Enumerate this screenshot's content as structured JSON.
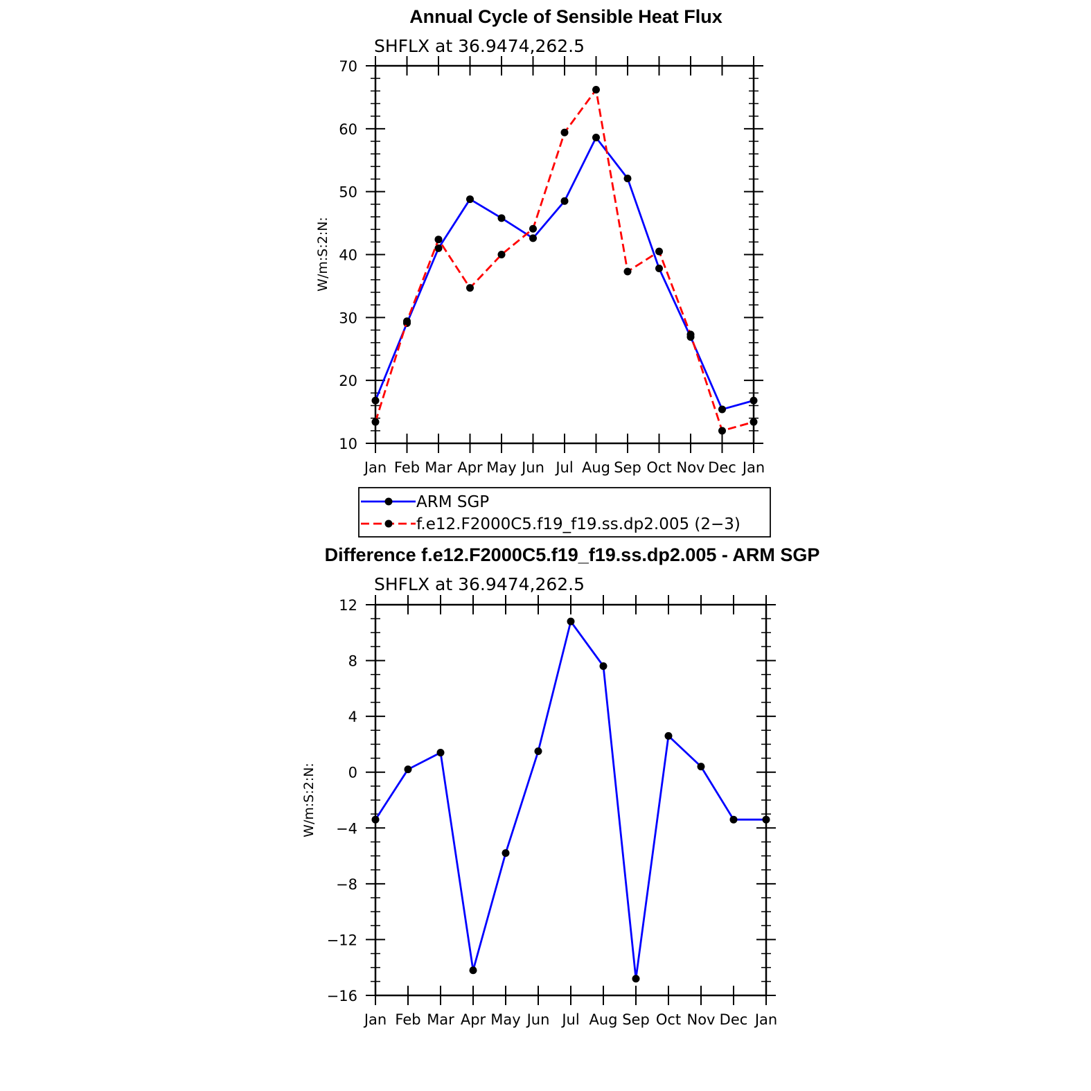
{
  "chart_data": [
    {
      "type": "line",
      "title": "Annual Cycle of Sensible Heat Flux",
      "subtitle": "SHFLX  at  36.9474,262.5",
      "ylabel": "W/m:S:2:N:",
      "xlabel": "",
      "categories": [
        "Jan",
        "Feb",
        "Mar",
        "Apr",
        "May",
        "Jun",
        "Jul",
        "Aug",
        "Sep",
        "Oct",
        "Nov",
        "Dec",
        "Jan"
      ],
      "ylim": [
        10,
        70
      ],
      "yticks": [
        10,
        20,
        30,
        40,
        50,
        60,
        70
      ],
      "series": [
        {
          "name": "ARM SGP",
          "color": "#0000ff",
          "dash": "solid",
          "values": [
            16.8,
            29.1,
            41.0,
            48.8,
            45.8,
            42.6,
            48.5,
            58.6,
            52.1,
            37.8,
            26.9,
            15.4,
            16.8
          ]
        },
        {
          "name": "f.e12.F2000C5.f19_f19.ss.dp2.005 (2−3)",
          "color": "#ff0000",
          "dash": "dashed",
          "values": [
            13.4,
            29.4,
            42.4,
            34.7,
            40.0,
            44.1,
            59.4,
            66.2,
            37.3,
            40.5,
            27.3,
            12.0,
            13.4
          ]
        }
      ],
      "legend": "bottom"
    },
    {
      "type": "line",
      "title": "Difference f.e12.F2000C5.f19_f19.ss.dp2.005 - ARM SGP",
      "subtitle": "SHFLX  at  36.9474,262.5",
      "ylabel": "W/m:S:2:N:",
      "xlabel": "",
      "categories": [
        "Jan",
        "Feb",
        "Mar",
        "Apr",
        "May",
        "Jun",
        "Jul",
        "Aug",
        "Sep",
        "Oct",
        "Nov",
        "Dec",
        "Jan"
      ],
      "ylim": [
        -16,
        12
      ],
      "yticks": [
        -16,
        -12,
        -8,
        -4,
        0,
        4,
        8,
        12
      ],
      "ytick_labels": [
        "−16",
        "−12",
        "−8",
        "−4",
        "0",
        "4",
        "8",
        "12"
      ],
      "series": [
        {
          "color": "#0000ff",
          "dash": "solid",
          "values": [
            -3.4,
            0.2,
            1.4,
            -14.2,
            -5.8,
            1.5,
            10.8,
            7.6,
            -14.8,
            2.6,
            0.4,
            -3.4,
            -3.4
          ]
        }
      ]
    }
  ]
}
